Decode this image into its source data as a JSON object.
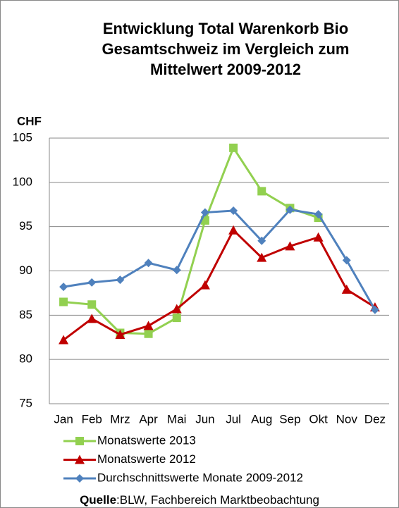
{
  "chart_data": {
    "type": "line",
    "title": [
      "Entwicklung Total Warenkorb Bio",
      "Gesamtschweiz im Vergleich zum",
      "Mittelwert 2009-2012"
    ],
    "y_label": "CHF",
    "categories": [
      "Jan",
      "Feb",
      "Mrz",
      "Apr",
      "Mai",
      "Jun",
      "Jul",
      "Aug",
      "Sep",
      "Okt",
      "Nov",
      "Dez"
    ],
    "series": [
      {
        "name": "Monatswerte 2013",
        "color": "#92d050",
        "marker": "square",
        "values": [
          86.5,
          86.2,
          83.0,
          82.9,
          84.7,
          95.7,
          103.9,
          99.0,
          97.1,
          96.0,
          null,
          null
        ]
      },
      {
        "name": "Monatswerte 2012",
        "color": "#c00000",
        "marker": "triangle",
        "values": [
          82.2,
          84.6,
          82.8,
          83.8,
          85.7,
          88.4,
          94.6,
          91.5,
          92.8,
          93.8,
          87.9,
          85.9
        ]
      },
      {
        "name": "Durchschnittswerte Monate 2009-2012",
        "color": "#4f81bd",
        "marker": "diamond",
        "values": [
          88.2,
          88.7,
          89.0,
          90.9,
          90.1,
          96.6,
          96.8,
          93.4,
          96.9,
          96.4,
          91.2,
          85.6
        ]
      }
    ],
    "ylim": [
      75,
      105
    ],
    "yticks": [
      75,
      80,
      85,
      90,
      95,
      100,
      105
    ],
    "grid": true,
    "source_label": "Quelle",
    "source_text": ":BLW,  Fachbereich Marktbeobachtung"
  }
}
